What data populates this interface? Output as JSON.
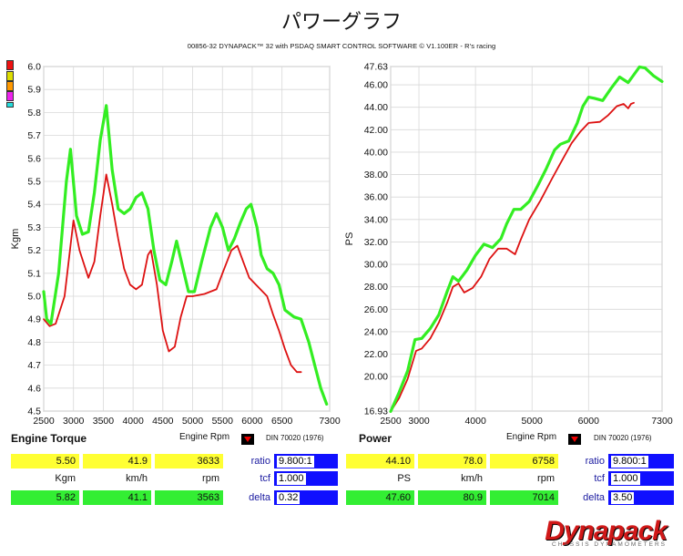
{
  "page": {
    "title": "パワーグラフ",
    "subtitle": "00856-32 DYNAPACK™ 32 with PSDAQ SMART CONTROL SOFTWARE © V1.100ER - R's racing"
  },
  "colors": {
    "run1": "#dd1111",
    "run2": "#33ee22"
  },
  "swatches": [
    "#ee1111",
    "#dddd00",
    "#ff9900",
    "#ee22ee",
    "#22dddd"
  ],
  "chart_data": [
    {
      "type": "line",
      "title": "Engine Torque",
      "xlabel": "Engine Rpm",
      "ylabel": "Kgm",
      "xlim": [
        2500,
        7300
      ],
      "ylim": [
        4.5,
        6.0
      ],
      "x_ticks": [
        "2500",
        "3000",
        "3500",
        "4000",
        "4500",
        "5000",
        "5500",
        "6000",
        "6500",
        "7300"
      ],
      "y_ticks": [
        "4.5",
        "4.6",
        "4.7",
        "4.8",
        "4.9",
        "5.0",
        "5.1",
        "5.2",
        "5.3",
        "5.4",
        "5.5",
        "5.6",
        "5.7",
        "5.8",
        "5.9",
        "6.0"
      ],
      "standard": "DIN 70020 (1976)",
      "series": [
        {
          "color": "#dd1111",
          "points": [
            [
              2500,
              4.9
            ],
            [
              2600,
              4.87
            ],
            [
              2700,
              4.88
            ],
            [
              2850,
              5.0
            ],
            [
              2950,
              5.22
            ],
            [
              3000,
              5.33
            ],
            [
              3100,
              5.2
            ],
            [
              3250,
              5.08
            ],
            [
              3350,
              5.15
            ],
            [
              3450,
              5.35
            ],
            [
              3550,
              5.53
            ],
            [
              3650,
              5.4
            ],
            [
              3750,
              5.25
            ],
            [
              3850,
              5.12
            ],
            [
              3950,
              5.05
            ],
            [
              4050,
              5.03
            ],
            [
              4150,
              5.05
            ],
            [
              4250,
              5.18
            ],
            [
              4300,
              5.2
            ],
            [
              4400,
              5.05
            ],
            [
              4500,
              4.85
            ],
            [
              4600,
              4.76
            ],
            [
              4700,
              4.78
            ],
            [
              4800,
              4.91
            ],
            [
              4900,
              5.0
            ],
            [
              5000,
              5.0
            ],
            [
              5200,
              5.01
            ],
            [
              5400,
              5.03
            ],
            [
              5500,
              5.1
            ],
            [
              5650,
              5.2
            ],
            [
              5750,
              5.22
            ],
            [
              5850,
              5.15
            ],
            [
              5950,
              5.08
            ],
            [
              6100,
              5.04
            ],
            [
              6250,
              5.0
            ],
            [
              6350,
              4.92
            ],
            [
              6450,
              4.85
            ],
            [
              6550,
              4.77
            ],
            [
              6650,
              4.7
            ],
            [
              6750,
              4.67
            ],
            [
              6820,
              4.67
            ]
          ]
        },
        {
          "color": "#33ee22",
          "points": [
            [
              2500,
              5.02
            ],
            [
              2550,
              4.9
            ],
            [
              2620,
              4.88
            ],
            [
              2750,
              5.1
            ],
            [
              2880,
              5.5
            ],
            [
              2950,
              5.64
            ],
            [
              3050,
              5.35
            ],
            [
              3150,
              5.27
            ],
            [
              3250,
              5.28
            ],
            [
              3350,
              5.45
            ],
            [
              3450,
              5.68
            ],
            [
              3550,
              5.83
            ],
            [
              3650,
              5.55
            ],
            [
              3750,
              5.38
            ],
            [
              3850,
              5.36
            ],
            [
              3950,
              5.38
            ],
            [
              4050,
              5.43
            ],
            [
              4150,
              5.45
            ],
            [
              4250,
              5.38
            ],
            [
              4350,
              5.2
            ],
            [
              4450,
              5.07
            ],
            [
              4550,
              5.05
            ],
            [
              4650,
              5.15
            ],
            [
              4730,
              5.24
            ],
            [
              4830,
              5.13
            ],
            [
              4930,
              5.02
            ],
            [
              5030,
              5.02
            ],
            [
              5150,
              5.15
            ],
            [
              5300,
              5.3
            ],
            [
              5400,
              5.36
            ],
            [
              5500,
              5.3
            ],
            [
              5600,
              5.2
            ],
            [
              5700,
              5.25
            ],
            [
              5800,
              5.32
            ],
            [
              5900,
              5.38
            ],
            [
              5980,
              5.4
            ],
            [
              6080,
              5.3
            ],
            [
              6150,
              5.18
            ],
            [
              6250,
              5.12
            ],
            [
              6350,
              5.1
            ],
            [
              6450,
              5.05
            ],
            [
              6550,
              4.94
            ],
            [
              6700,
              4.91
            ],
            [
              6820,
              4.9
            ],
            [
              6950,
              4.8
            ],
            [
              7050,
              4.7
            ],
            [
              7150,
              4.6
            ],
            [
              7250,
              4.53
            ]
          ]
        }
      ],
      "readout": {
        "top": [
          "5.50",
          "41.9",
          "3633"
        ],
        "units": [
          "Kgm",
          "km/h",
          "rpm"
        ],
        "bottom": [
          "5.82",
          "41.1",
          "3563"
        ],
        "ratio_label": "ratio",
        "ratio_value": "9.800:1",
        "tcf_label": "tcf",
        "tcf_value": "1.000",
        "delta_label": "delta",
        "delta_value": "0.32"
      }
    },
    {
      "type": "line",
      "title": "Power",
      "xlabel": "Engine Rpm",
      "ylabel": "PS",
      "xlim": [
        2500,
        7300
      ],
      "ylim": [
        16.93,
        47.63
      ],
      "x_ticks": [
        "2500",
        "3000",
        "4000",
        "5000",
        "6000",
        "7300"
      ],
      "y_ticks": [
        "16.93",
        "20.00",
        "22.00",
        "24.00",
        "26.00",
        "28.00",
        "30.00",
        "32.00",
        "34.00",
        "36.00",
        "38.00",
        "40.00",
        "42.00",
        "44.00",
        "46.00",
        "47.63"
      ],
      "standard": "DIN 70020 (1976)",
      "series": [
        {
          "color": "#dd1111",
          "points": [
            [
              2500,
              16.9
            ],
            [
              2650,
              18.1
            ],
            [
              2800,
              19.8
            ],
            [
              2950,
              22.3
            ],
            [
              3050,
              22.5
            ],
            [
              3200,
              23.4
            ],
            [
              3350,
              24.8
            ],
            [
              3500,
              26.6
            ],
            [
              3600,
              28.0
            ],
            [
              3700,
              28.3
            ],
            [
              3800,
              27.5
            ],
            [
              3950,
              27.9
            ],
            [
              4100,
              28.9
            ],
            [
              4250,
              30.5
            ],
            [
              4400,
              31.4
            ],
            [
              4550,
              31.4
            ],
            [
              4700,
              30.9
            ],
            [
              4800,
              32.2
            ],
            [
              4950,
              34.0
            ],
            [
              5150,
              35.7
            ],
            [
              5350,
              37.6
            ],
            [
              5500,
              39.0
            ],
            [
              5700,
              40.8
            ],
            [
              5850,
              41.8
            ],
            [
              6000,
              42.6
            ],
            [
              6200,
              42.7
            ],
            [
              6350,
              43.3
            ],
            [
              6500,
              44.1
            ],
            [
              6620,
              44.3
            ],
            [
              6700,
              43.9
            ],
            [
              6750,
              44.3
            ],
            [
              6800,
              44.4
            ]
          ]
        },
        {
          "color": "#33ee22",
          "points": [
            [
              2500,
              16.9
            ],
            [
              2650,
              18.6
            ],
            [
              2800,
              20.5
            ],
            [
              2930,
              23.3
            ],
            [
              3050,
              23.4
            ],
            [
              3200,
              24.3
            ],
            [
              3350,
              25.5
            ],
            [
              3500,
              27.6
            ],
            [
              3600,
              28.9
            ],
            [
              3700,
              28.5
            ],
            [
              3850,
              29.5
            ],
            [
              4000,
              30.8
            ],
            [
              4150,
              31.8
            ],
            [
              4300,
              31.5
            ],
            [
              4450,
              32.3
            ],
            [
              4550,
              33.6
            ],
            [
              4680,
              34.9
            ],
            [
              4800,
              34.9
            ],
            [
              4950,
              35.6
            ],
            [
              5100,
              37.0
            ],
            [
              5250,
              38.5
            ],
            [
              5400,
              40.2
            ],
            [
              5500,
              40.7
            ],
            [
              5650,
              41.0
            ],
            [
              5800,
              42.6
            ],
            [
              5900,
              44.1
            ],
            [
              6000,
              44.9
            ],
            [
              6100,
              44.8
            ],
            [
              6250,
              44.6
            ],
            [
              6400,
              45.7
            ],
            [
              6550,
              46.7
            ],
            [
              6700,
              46.2
            ],
            [
              6800,
              46.9
            ],
            [
              6900,
              47.6
            ],
            [
              7000,
              47.5
            ],
            [
              7150,
              46.8
            ],
            [
              7300,
              46.3
            ]
          ]
        }
      ],
      "readout": {
        "top": [
          "44.10",
          "78.0",
          "6758"
        ],
        "units": [
          "PS",
          "km/h",
          "rpm"
        ],
        "bottom": [
          "47.60",
          "80.9",
          "7014"
        ],
        "ratio_label": "ratio",
        "ratio_value": "9.800:1",
        "tcf_label": "tcf",
        "tcf_value": "1.000",
        "delta_label": "delta",
        "delta_value": "3.50"
      }
    }
  ],
  "logo": {
    "name": "Dynapack",
    "tagline": "CHASSIS DYNAMOMETERS"
  }
}
